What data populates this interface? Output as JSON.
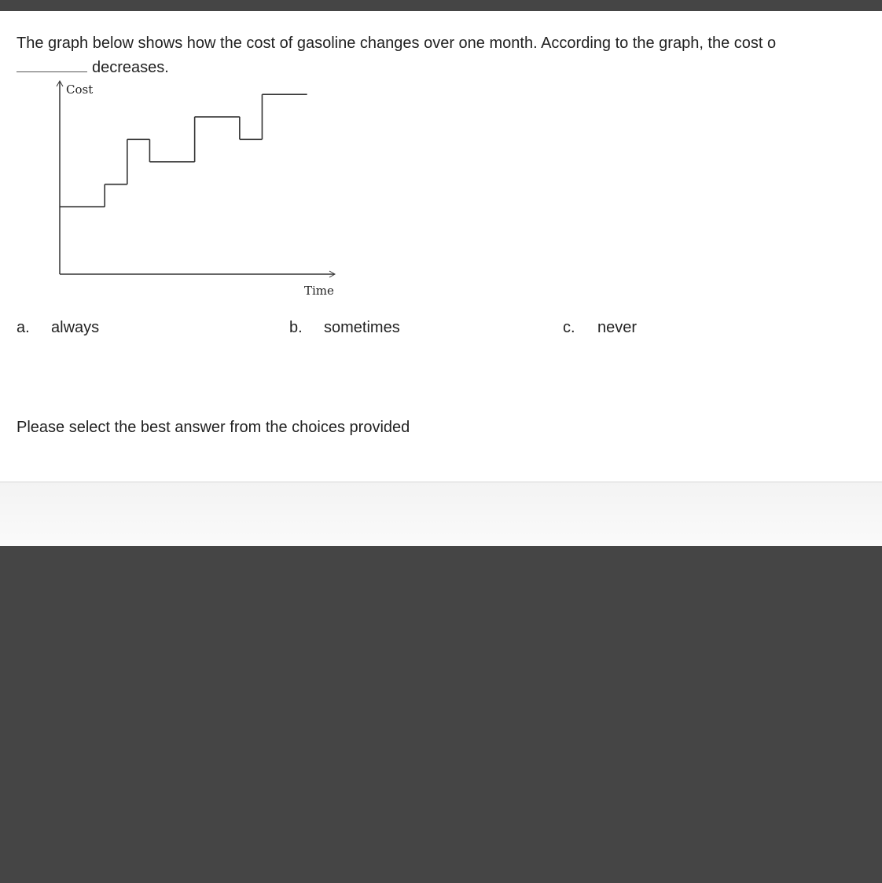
{
  "question": {
    "line1": "The graph below shows how the cost of gasoline changes over one month. According to the graph, the cost o",
    "line2": "decreases."
  },
  "chart_data": {
    "type": "line",
    "step": true,
    "xlabel": "Time",
    "ylabel": "Cost",
    "xlim": [
      0,
      12.2
    ],
    "ylim": [
      0,
      8.6
    ],
    "grid": false,
    "series": [
      {
        "x": [
          0,
          2,
          2,
          3,
          3,
          4,
          4,
          6,
          6,
          8,
          8,
          9,
          9,
          11
        ],
        "y": [
          3,
          3,
          4,
          4,
          6,
          6,
          5,
          5,
          7,
          7,
          6,
          6,
          8,
          8
        ]
      }
    ],
    "line_color": "#333333"
  },
  "choices": [
    {
      "letter": "a.",
      "text": "always"
    },
    {
      "letter": "b.",
      "text": "sometimes"
    },
    {
      "letter": "c.",
      "text": "never"
    }
  ],
  "instruction": "Please select the best answer from the choices provided"
}
